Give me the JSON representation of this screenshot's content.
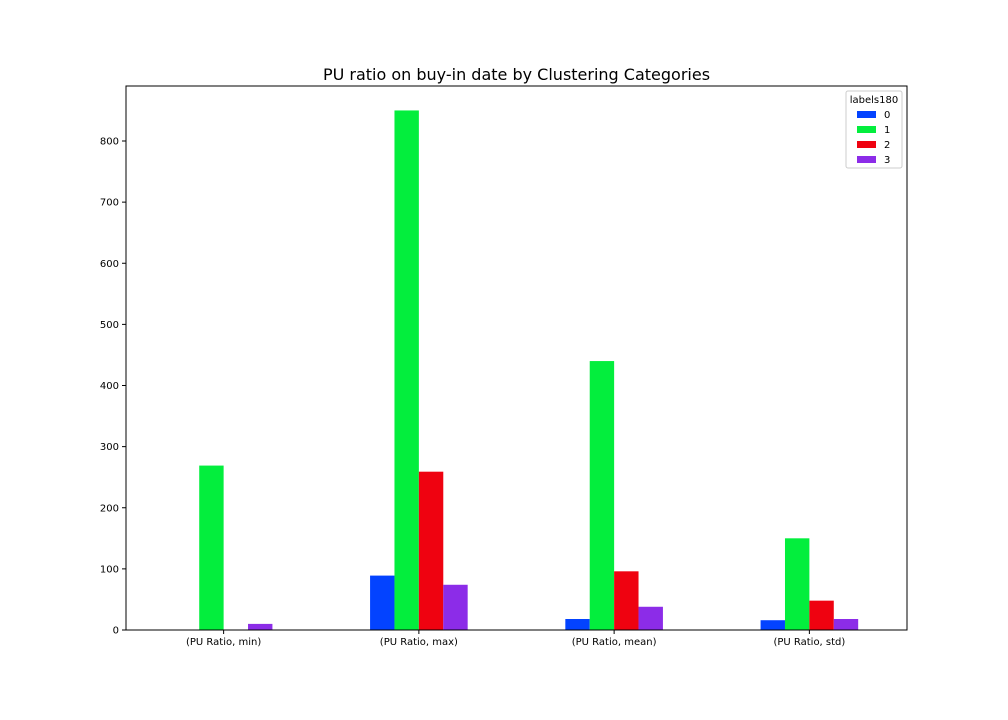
{
  "chart_data": {
    "type": "bar",
    "title": "PU ratio on buy-in date by Clustering Categories",
    "xlabel": "",
    "ylabel": "",
    "categories": [
      "(PU Ratio, min)",
      "(PU Ratio, max)",
      "(PU Ratio, mean)",
      "(PU Ratio, std)"
    ],
    "ylim": [
      0,
      890
    ],
    "yticks": [
      0,
      100,
      200,
      300,
      400,
      500,
      600,
      700,
      800
    ],
    "grid": false,
    "legend": {
      "title": "labels180",
      "placement": "top-right"
    },
    "series": [
      {
        "name": "0",
        "color": "#0343ff",
        "values": [
          0,
          89,
          18,
          16
        ]
      },
      {
        "name": "1",
        "color": "#03ee3d",
        "values": [
          269,
          850,
          440,
          150
        ]
      },
      {
        "name": "2",
        "color": "#ef0210",
        "values": [
          0,
          259,
          96,
          48
        ]
      },
      {
        "name": "3",
        "color": "#8c2ce8",
        "values": [
          10,
          74,
          38,
          18
        ]
      }
    ]
  }
}
